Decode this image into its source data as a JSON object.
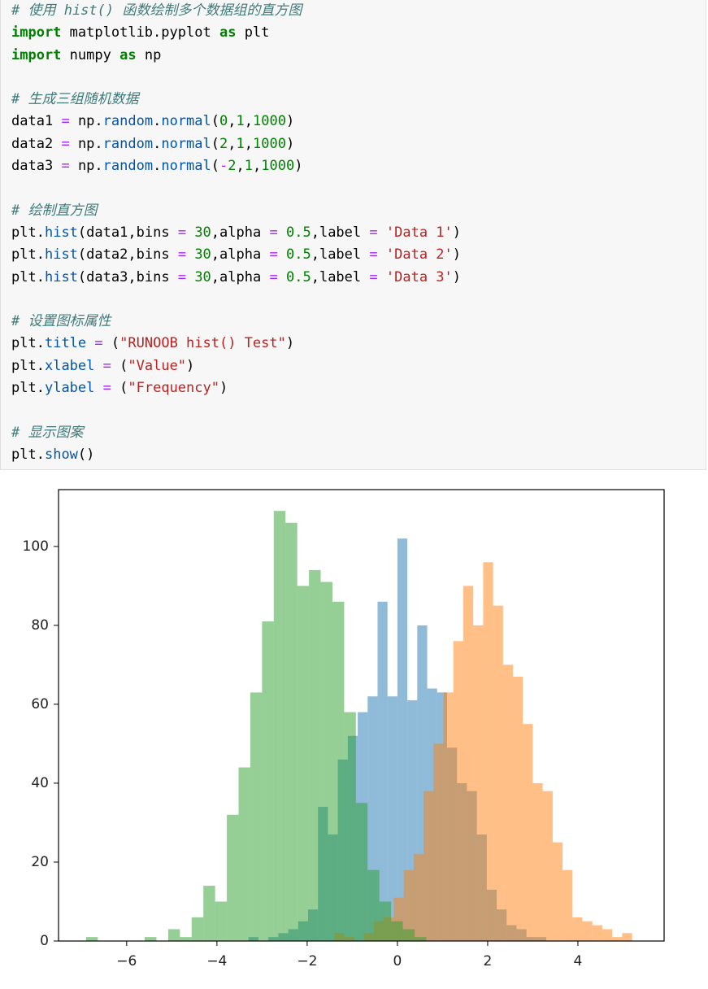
{
  "code": {
    "blocks": [
      [
        "# 使用 hist() 函数绘制多个数据组的直方图",
        "import matplotlib.pyplot as plt",
        "import numpy as np"
      ],
      [
        "# 生成三组随机数据",
        "data1 = np.random.normal(0,1,1000)",
        "data2 = np.random.normal(2,1,1000)",
        "data3 = np.random.normal(-2,1,1000)"
      ],
      [
        "# 绘制直方图",
        "plt.hist(data1,bins = 30,alpha = 0.5,label = 'Data 1')",
        "plt.hist(data2,bins = 30,alpha = 0.5,label = 'Data 2')",
        "plt.hist(data3,bins = 30,alpha = 0.5,label = 'Data 3')"
      ],
      [
        "# 设置图标属性",
        "plt.title = (\"RUNOOB hist() Test\")",
        "plt.xlabel = (\"Value\")",
        "plt.ylabel = (\"Frequency\")"
      ],
      [
        "# 显示图案",
        "plt.show()"
      ]
    ]
  },
  "chart_data": {
    "type": "histogram",
    "alpha": 0.5,
    "xlim": [
      -7.51,
      5.91
    ],
    "ylim": [
      0,
      114.4
    ],
    "xticks": [
      {
        "value": -6,
        "label": "−6"
      },
      {
        "value": -4,
        "label": "−4"
      },
      {
        "value": -2,
        "label": "−2"
      },
      0,
      2,
      4
    ],
    "yticks": [
      0,
      20,
      40,
      60,
      80,
      100
    ],
    "series": [
      {
        "color": "#1f77b4",
        "bins": [
          -3.3,
          -3.08,
          -2.86,
          -2.64,
          -2.42,
          -2.2,
          -1.98,
          -1.76,
          -1.54,
          -1.32,
          -1.1,
          -0.88,
          -0.66,
          -0.44,
          -0.22,
          0,
          0.22,
          0.44,
          0.66,
          0.88,
          1.1,
          1.32,
          1.54,
          1.76,
          1.98,
          2.2,
          2.42,
          2.64,
          2.86,
          3.08,
          3.3
        ],
        "values": [
          1,
          0,
          1,
          2,
          3,
          5,
          8,
          34,
          27,
          46,
          52,
          58,
          62,
          86,
          62,
          102,
          61,
          80,
          64,
          63,
          49,
          40,
          38,
          27,
          13,
          8,
          4,
          3,
          1,
          1
        ]
      },
      {
        "color": "#ff7f0e",
        "bins": [
          -1.4,
          -1.18,
          -0.96,
          -0.74,
          -0.52,
          -0.3,
          -0.08,
          0.14,
          0.36,
          0.58,
          0.8,
          1.02,
          1.24,
          1.46,
          1.68,
          1.9,
          2.12,
          2.34,
          2.56,
          2.78,
          3.0,
          3.22,
          3.44,
          3.66,
          3.88,
          4.1,
          4.32,
          4.54,
          4.76,
          4.98,
          5.2
        ],
        "values": [
          2,
          1,
          0,
          2,
          5,
          6,
          11,
          18,
          22,
          38,
          50,
          63,
          76,
          90,
          80,
          96,
          85,
          70,
          67,
          55,
          40,
          38,
          25,
          18,
          6,
          5,
          4,
          3,
          1,
          2
        ]
      },
      {
        "color": "#2ca02c",
        "bins": [
          -6.9,
          -6.64,
          -6.38,
          -6.12,
          -5.86,
          -5.6,
          -5.34,
          -5.08,
          -4.82,
          -4.56,
          -4.3,
          -4.04,
          -3.78,
          -3.52,
          -3.26,
          -3.0,
          -2.74,
          -2.48,
          -2.22,
          -1.96,
          -1.7,
          -1.44,
          -1.18,
          -0.92,
          -0.66,
          -0.4,
          -0.14,
          0.12,
          0.38,
          0.64,
          0.9
        ],
        "values": [
          1,
          0,
          0,
          0,
          0,
          1,
          0,
          3,
          1,
          6,
          14,
          10,
          32,
          44,
          63,
          81,
          109,
          106,
          90,
          94,
          91,
          86,
          58,
          35,
          18,
          10,
          5,
          3,
          1,
          0
        ]
      }
    ]
  }
}
